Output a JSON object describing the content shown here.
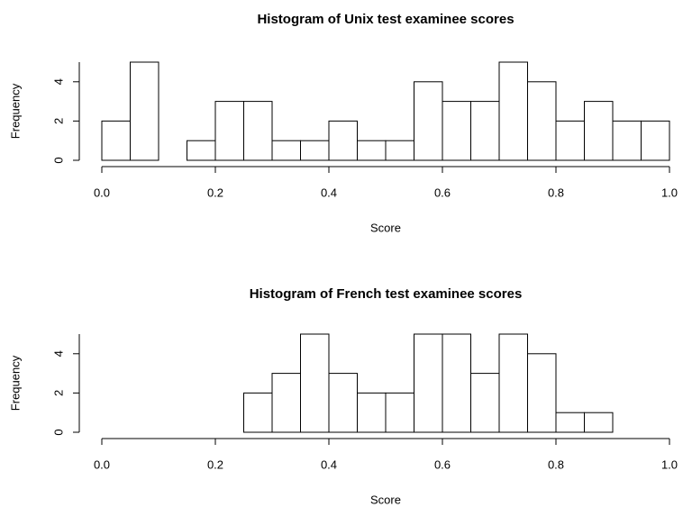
{
  "chart_data": [
    {
      "type": "histogram",
      "title": "Histogram of Unix test examinee scores",
      "xlabel": "Score",
      "ylabel": "Frequency",
      "bins": [
        0,
        0.05,
        0.1,
        0.15,
        0.2,
        0.25,
        0.3,
        0.35,
        0.4,
        0.45,
        0.5,
        0.55,
        0.6,
        0.65,
        0.7,
        0.75,
        0.8,
        0.85,
        0.9,
        0.95,
        1
      ],
      "values": [
        2,
        5,
        0,
        1,
        3,
        3,
        1,
        1,
        2,
        1,
        1,
        4,
        3,
        3,
        5,
        4,
        2,
        3,
        2,
        2
      ],
      "color": "#ffffff",
      "xlim": [
        0,
        1
      ],
      "xticks": [
        {
          "value": 0,
          "label": "0.0"
        },
        0.2,
        0.4,
        0.6,
        0.8,
        {
          "value": 1,
          "label": "1.0"
        }
      ],
      "ylim": [
        0,
        5
      ],
      "yticks": [
        0,
        2,
        4
      ]
    },
    {
      "type": "histogram",
      "title": "Histogram of French test examinee scores",
      "xlabel": "Score",
      "ylabel": "Frequency",
      "bins": [
        0.25,
        0.3,
        0.35,
        0.4,
        0.45,
        0.5,
        0.55,
        0.6,
        0.65,
        0.7,
        0.75,
        0.8,
        0.85,
        0.9
      ],
      "values": [
        2,
        3,
        5,
        3,
        2,
        2,
        5,
        5,
        3,
        5,
        4,
        1,
        1
      ],
      "color": "#ffffff",
      "xlim": [
        0,
        1
      ],
      "xticks": [
        {
          "value": 0,
          "label": "0.0"
        },
        0.2,
        0.4,
        0.6,
        0.8,
        {
          "value": 1,
          "label": "1.0"
        }
      ],
      "ylim": [
        0,
        5
      ],
      "yticks": [
        0,
        2,
        4
      ]
    }
  ]
}
